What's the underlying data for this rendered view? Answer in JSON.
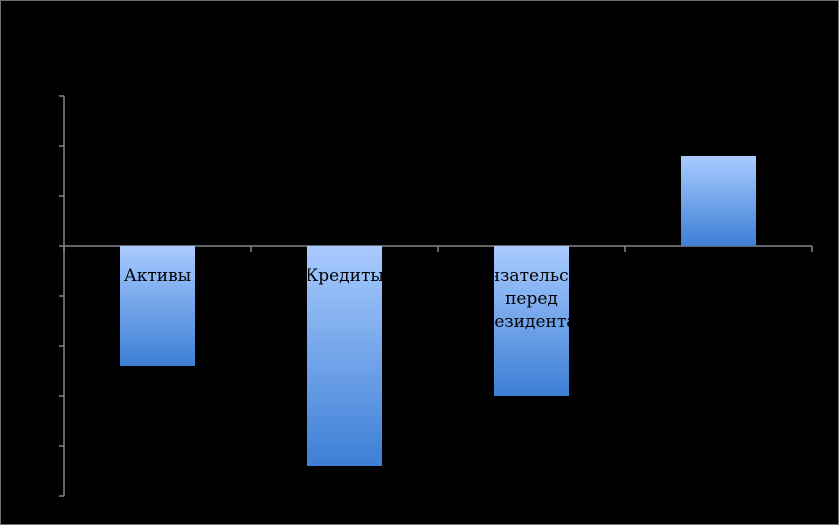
{
  "chart_data": {
    "type": "bar",
    "categories": [
      [
        "Активы"
      ],
      [
        "Кредиты"
      ],
      [
        "Обязательства",
        "перед",
        "нерезидентами"
      ],
      [
        ""
      ]
    ],
    "values": [
      -2.4,
      -4.4,
      -3.0,
      1.8
    ],
    "ylim": [
      -5,
      3
    ],
    "y_tick_step": 1,
    "grid": false,
    "legend": "none",
    "title": "",
    "xlabel": "",
    "ylabel": "",
    "colors": {
      "background": "#000000",
      "axis": "#868686",
      "bar_top": "#a9cbff",
      "bar_bottom": "#3d7fd5",
      "label": "#000000"
    }
  }
}
